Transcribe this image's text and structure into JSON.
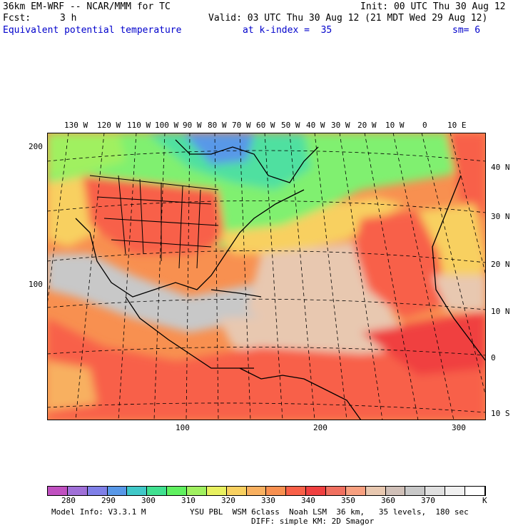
{
  "header": {
    "model_title": "36km EM-WRF -- NCAR/MMM for TC",
    "init": "Init: 00 UTC Thu 30 Aug 12",
    "fcst_label": "Fcst:",
    "fcst_value": "3 h",
    "valid": "Valid: 03 UTC Thu 30 Aug 12 (21 MDT Wed 29 Aug 12)",
    "field_name": "Equivalent potential temperature",
    "level": "at k-index =  35",
    "smoothing": "sm= 6"
  },
  "map": {
    "lon_labels": [
      "130 W",
      "120 W",
      "110 W",
      "100 W",
      "90 W",
      "80 W",
      "70 W",
      "60 W",
      "50 W",
      "40 W",
      "30 W",
      "20 W",
      "10 W",
      "0",
      "10 E"
    ],
    "lat_labels": [
      "40 N",
      "30 N",
      "20 N",
      "10 N",
      "0",
      "10 S"
    ],
    "grid_y_labels": [
      "200",
      "100"
    ],
    "grid_x_labels": [
      "100",
      "200",
      "300"
    ]
  },
  "colorbar": {
    "labels": [
      "280",
      "290",
      "300",
      "310",
      "320",
      "330",
      "340",
      "350",
      "360",
      "370"
    ],
    "unit": "K",
    "colors": [
      "#c050c0",
      "#a070d8",
      "#8080e8",
      "#5898e8",
      "#40c8c8",
      "#40e090",
      "#60f060",
      "#a0f060",
      "#e8f060",
      "#f8d060",
      "#f8b060",
      "#f89050",
      "#f86048",
      "#f04040",
      "#f07060",
      "#f8a080",
      "#e8c8b0",
      "#d0c0b8",
      "#c8c8c8",
      "#e0e0e0",
      "#f0f0f0",
      "#ffffff"
    ]
  },
  "footer": {
    "model_info": "Model Info: V3.3.1 M",
    "physics_line1": "YSU PBL  WSM 6class  Noah LSM  36 km,   35 levels,  180 sec",
    "physics_line2": "DIFF: simple KM: 2D Smagor"
  }
}
